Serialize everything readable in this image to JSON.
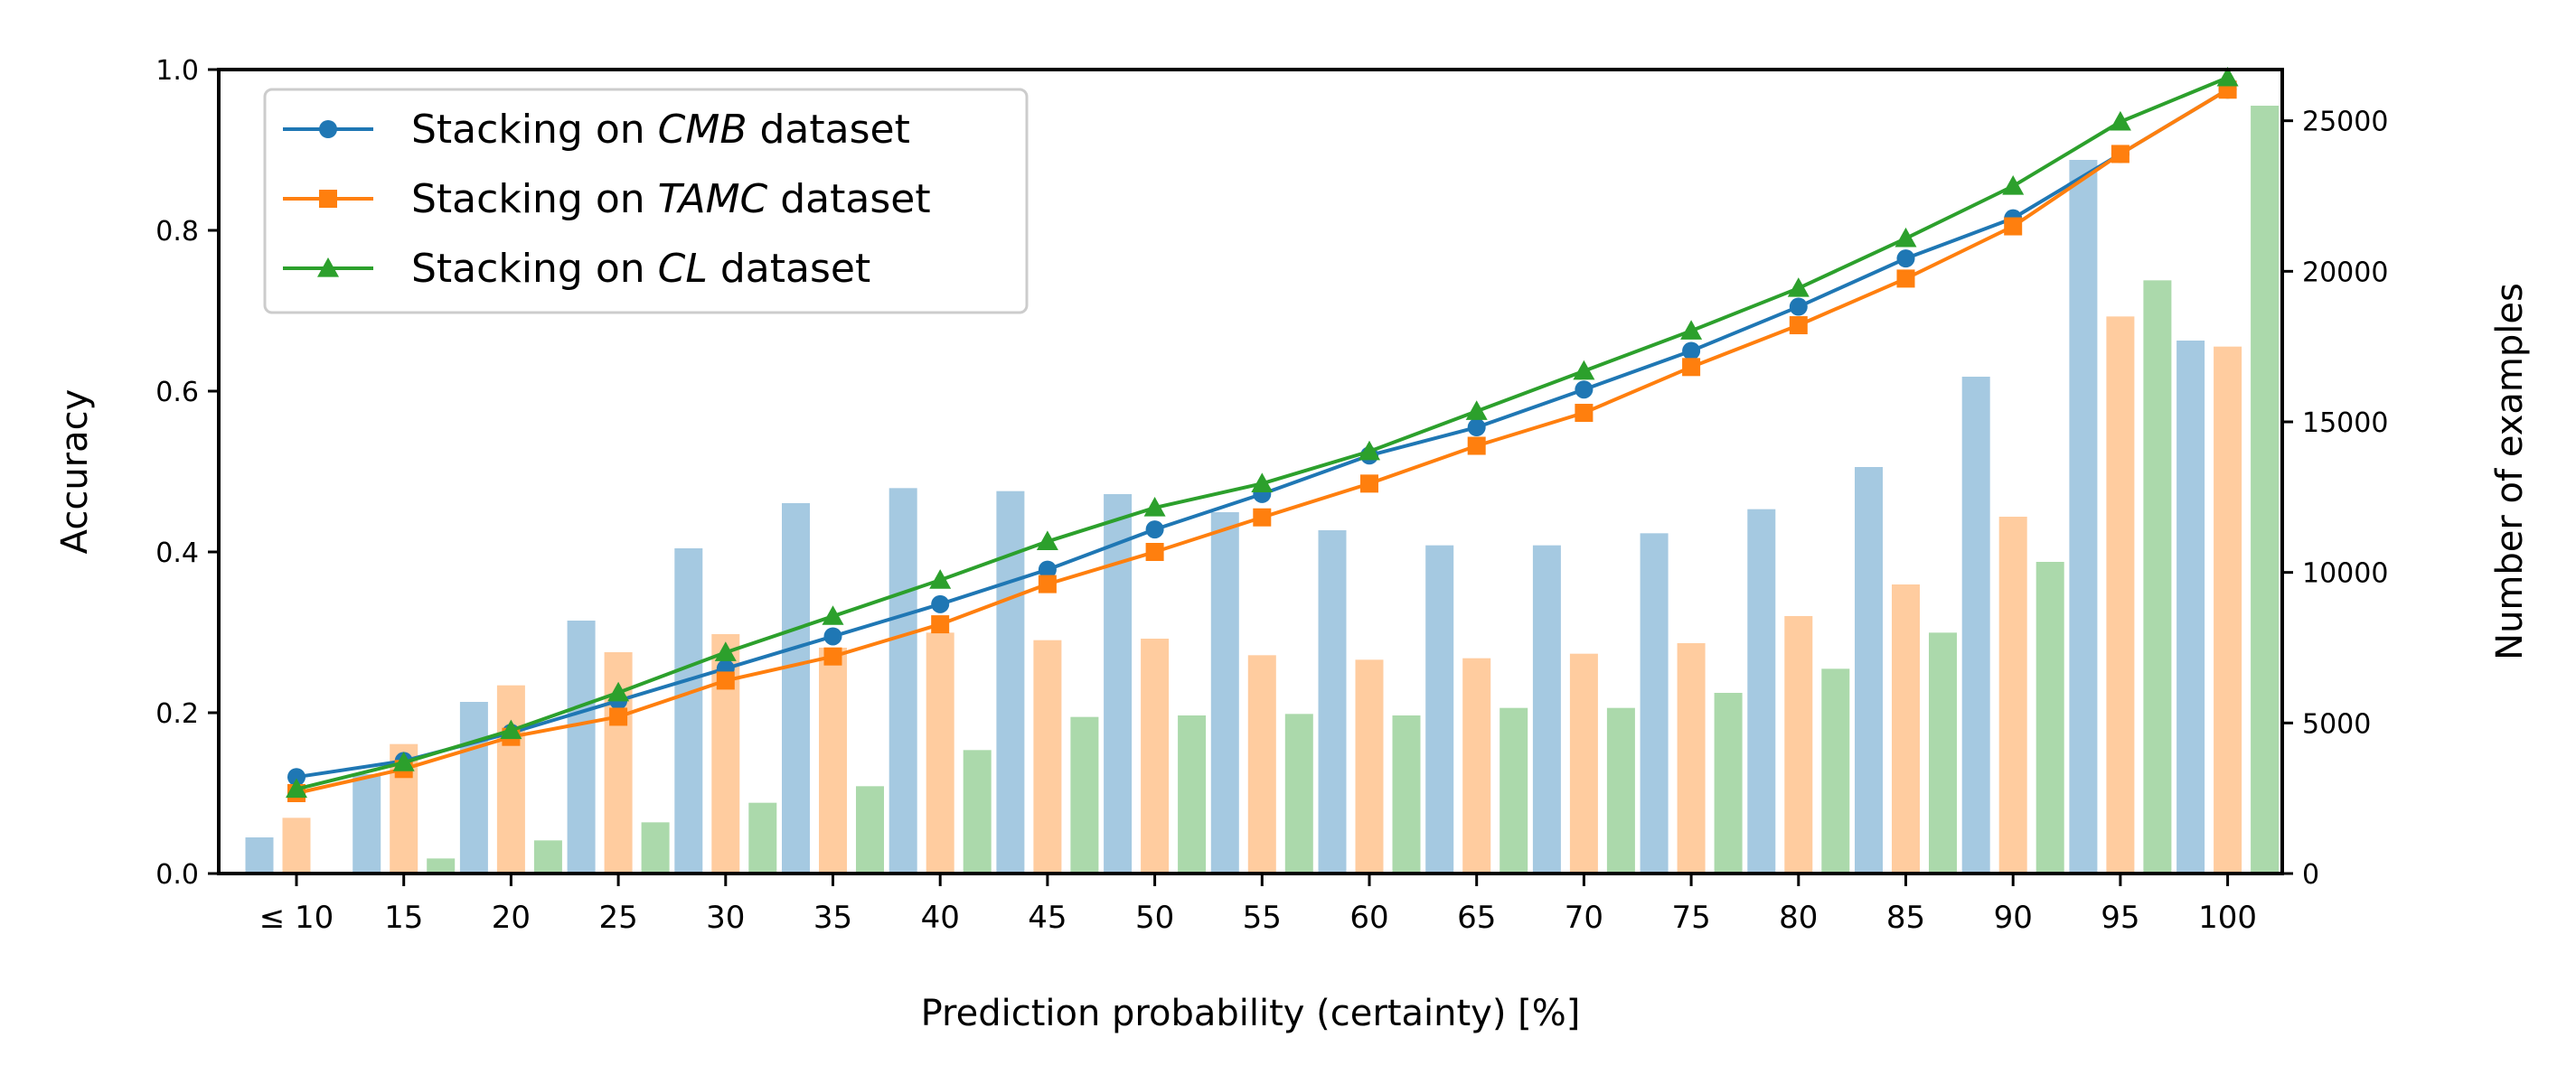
{
  "chart_data": {
    "type": "bar+line",
    "categories": [
      "≤ 10",
      "15",
      "20",
      "25",
      "30",
      "35",
      "40",
      "45",
      "50",
      "55",
      "60",
      "65",
      "70",
      "75",
      "80",
      "85",
      "90",
      "95",
      "100"
    ],
    "xlabel": "Prediction probability (certainty) [%]",
    "ylabel_left": "Accuracy",
    "ylabel_right": "Number of examples",
    "ylim_left": [
      0.0,
      1.0
    ],
    "ylim_right": [
      0,
      26700
    ],
    "left_ticks": [
      "0.0",
      "0.2",
      "0.4",
      "0.6",
      "0.8",
      "1.0"
    ],
    "right_ticks": [
      "0",
      "5000",
      "10000",
      "15000",
      "20000",
      "25000"
    ],
    "legend_position": "top-left",
    "grid": false,
    "colors": {
      "cmb": "#1f77b4",
      "tamc": "#ff7f0e",
      "cl": "#2ca02c"
    },
    "bar_alpha": 0.4,
    "line_series": [
      {
        "key": "cmb",
        "label_prefix": "Stacking on ",
        "label_ital": "CMB",
        "label_suffix": " dataset",
        "marker": "circle",
        "values": [
          0.12,
          0.14,
          0.175,
          0.215,
          0.255,
          0.295,
          0.335,
          0.378,
          0.428,
          0.472,
          0.52,
          0.555,
          0.602,
          0.65,
          0.705,
          0.765,
          0.815,
          0.895,
          0.975
        ]
      },
      {
        "key": "tamc",
        "label_prefix": "Stacking on ",
        "label_ital": "TAMC",
        "label_suffix": " dataset",
        "marker": "square",
        "values": [
          0.1,
          0.13,
          0.17,
          0.195,
          0.24,
          0.27,
          0.31,
          0.36,
          0.4,
          0.443,
          0.485,
          0.532,
          0.573,
          0.63,
          0.682,
          0.74,
          0.805,
          0.895,
          0.975
        ]
      },
      {
        "key": "cl",
        "label_prefix": "Stacking on ",
        "label_ital": "CL",
        "label_suffix": " dataset",
        "marker": "triangle",
        "values": [
          0.105,
          0.138,
          0.178,
          0.225,
          0.275,
          0.32,
          0.365,
          0.413,
          0.455,
          0.485,
          0.525,
          0.575,
          0.625,
          0.675,
          0.728,
          0.79,
          0.855,
          0.935,
          0.99
        ]
      }
    ],
    "bar_series": [
      {
        "key": "cmb",
        "values": [
          1200,
          3300,
          5700,
          8400,
          10800,
          12300,
          12800,
          12700,
          12600,
          12000,
          11400,
          10900,
          10900,
          11300,
          12100,
          13500,
          16500,
          23700,
          17700
        ]
      },
      {
        "key": "tamc",
        "values": [
          1850,
          4300,
          6250,
          7350,
          7950,
          7500,
          8000,
          7750,
          7800,
          7250,
          7100,
          7150,
          7300,
          7650,
          8550,
          9600,
          11850,
          18500,
          17500
        ]
      },
      {
        "key": "cl",
        "values": [
          0,
          500,
          1100,
          1700,
          2350,
          2900,
          4100,
          5200,
          5250,
          5300,
          5250,
          5500,
          5500,
          6000,
          6800,
          8000,
          10350,
          19700,
          25500
        ]
      }
    ]
  }
}
